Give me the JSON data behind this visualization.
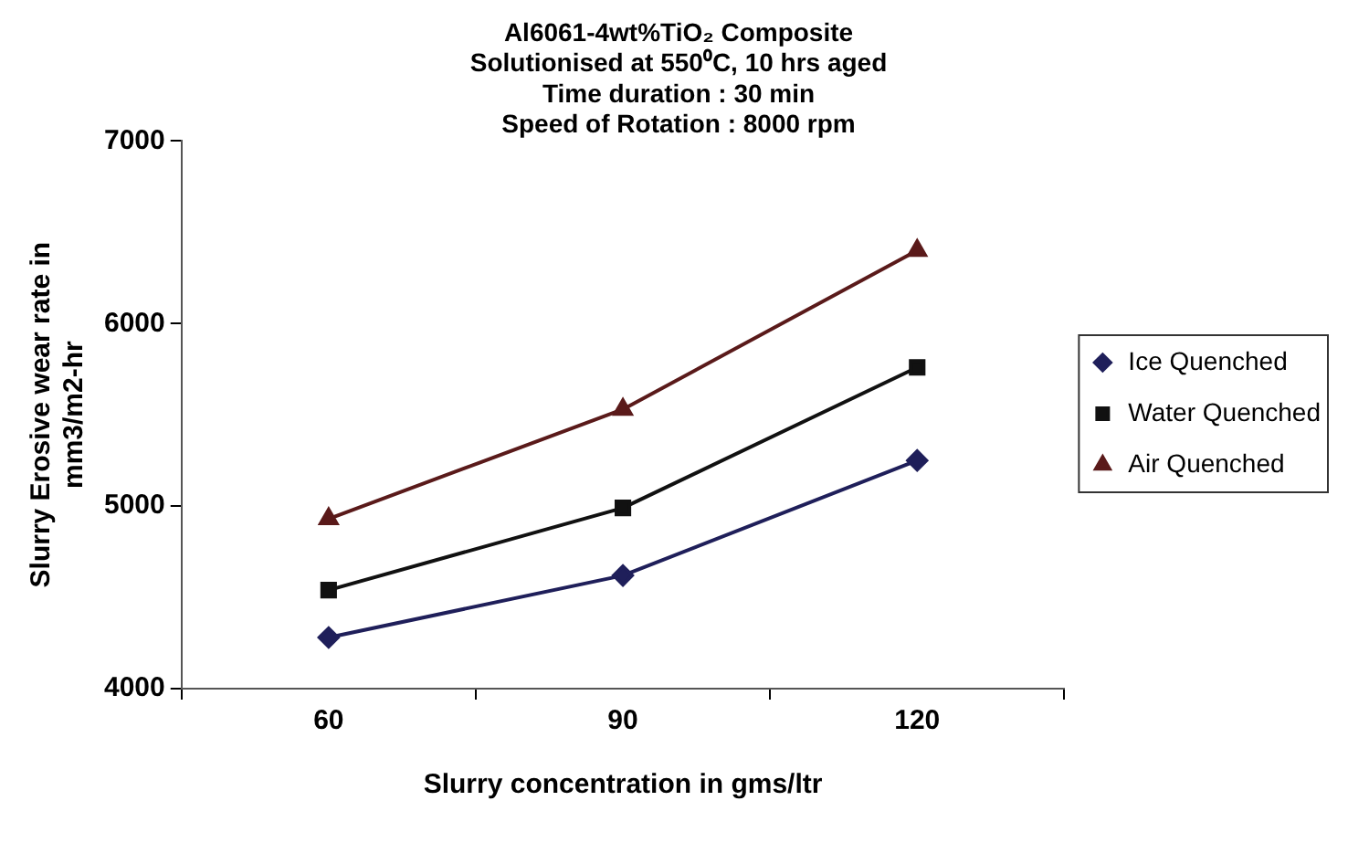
{
  "chart_data": {
    "type": "line",
    "title": "Al6061-4wt%TiO₂ Composite\nSolutionised at 550⁰C, 10 hrs aged\nTime duration : 30 min\nSpeed of Rotation : 8000 rpm",
    "xlabel": "Slurry concentration in gms/ltr",
    "ylabel": "Slurry Erosive wear rate in\nmm3/m2-hr",
    "categories": [
      "60",
      "90",
      "120"
    ],
    "series": [
      {
        "name": "Ice Quenched",
        "color": "#1f1f5a",
        "marker": "diamond",
        "values": [
          4280,
          4620,
          5250
        ]
      },
      {
        "name": "Water Quenched",
        "color": "#111111",
        "marker": "square",
        "values": [
          4540,
          4990,
          5760
        ]
      },
      {
        "name": "Air Quenched",
        "color": "#5a1a1a",
        "marker": "triangle",
        "values": [
          4930,
          5530,
          6400
        ]
      }
    ],
    "ylim": [
      4000,
      7000
    ],
    "yticks": [
      4000,
      5000,
      6000,
      7000
    ],
    "grid": false,
    "legend": "right",
    "line_style": "solid"
  }
}
